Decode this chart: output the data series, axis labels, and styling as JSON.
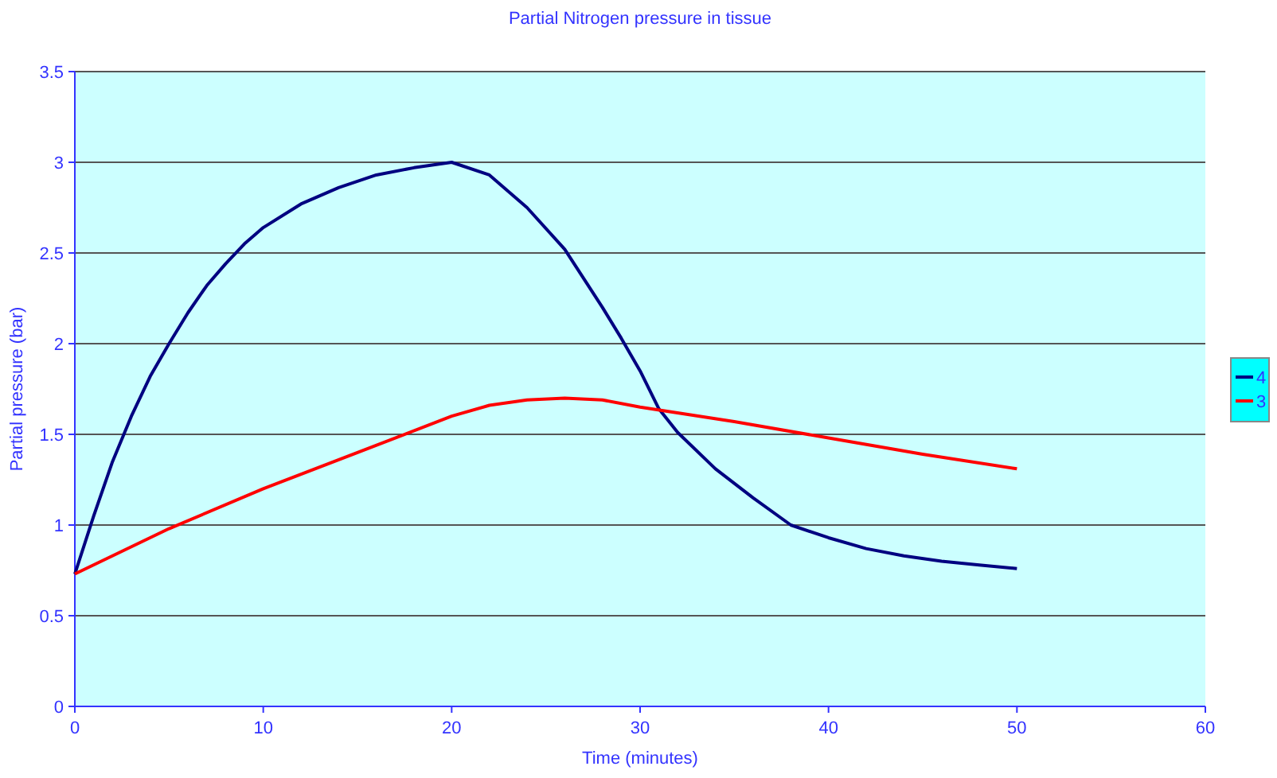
{
  "chart_data": {
    "type": "line",
    "title": "Partial Nitrogen pressure in tissue",
    "xlabel": "Time (minutes)",
    "ylabel": "Partial pressure (bar)",
    "xlim": [
      0,
      60
    ],
    "xticks": [
      0,
      10,
      20,
      30,
      40,
      50,
      60
    ],
    "ylim": [
      0,
      3.5
    ],
    "yticks": [
      0,
      0.5,
      1,
      1.5,
      2,
      2.5,
      3,
      3.5
    ],
    "grid": "y",
    "legend": "right",
    "marker": "none",
    "line_style": "solid",
    "series": [
      {
        "name": "4",
        "color": "#000080",
        "x": [
          0,
          1,
          2,
          3,
          4,
          5,
          6,
          7,
          8,
          9,
          10,
          12,
          14,
          16,
          18,
          20,
          22,
          24,
          26,
          28,
          29,
          30,
          31,
          32,
          34,
          36,
          38,
          40,
          42,
          44,
          46,
          48,
          50
        ],
        "values": [
          0.73,
          1.05,
          1.35,
          1.6,
          1.82,
          2.0,
          2.17,
          2.32,
          2.44,
          2.55,
          2.64,
          2.77,
          2.86,
          2.93,
          2.97,
          3.0,
          2.93,
          2.75,
          2.52,
          2.2,
          2.03,
          1.85,
          1.64,
          1.51,
          1.31,
          1.15,
          1.0,
          0.93,
          0.87,
          0.83,
          0.8,
          0.78,
          0.76
        ]
      },
      {
        "name": "3",
        "color": "#ff0000",
        "x": [
          0,
          5,
          10,
          15,
          20,
          22,
          24,
          26,
          28,
          30,
          35,
          40,
          45,
          50
        ],
        "values": [
          0.73,
          0.98,
          1.2,
          1.4,
          1.6,
          1.66,
          1.69,
          1.7,
          1.69,
          1.65,
          1.57,
          1.48,
          1.39,
          1.31
        ]
      }
    ]
  }
}
